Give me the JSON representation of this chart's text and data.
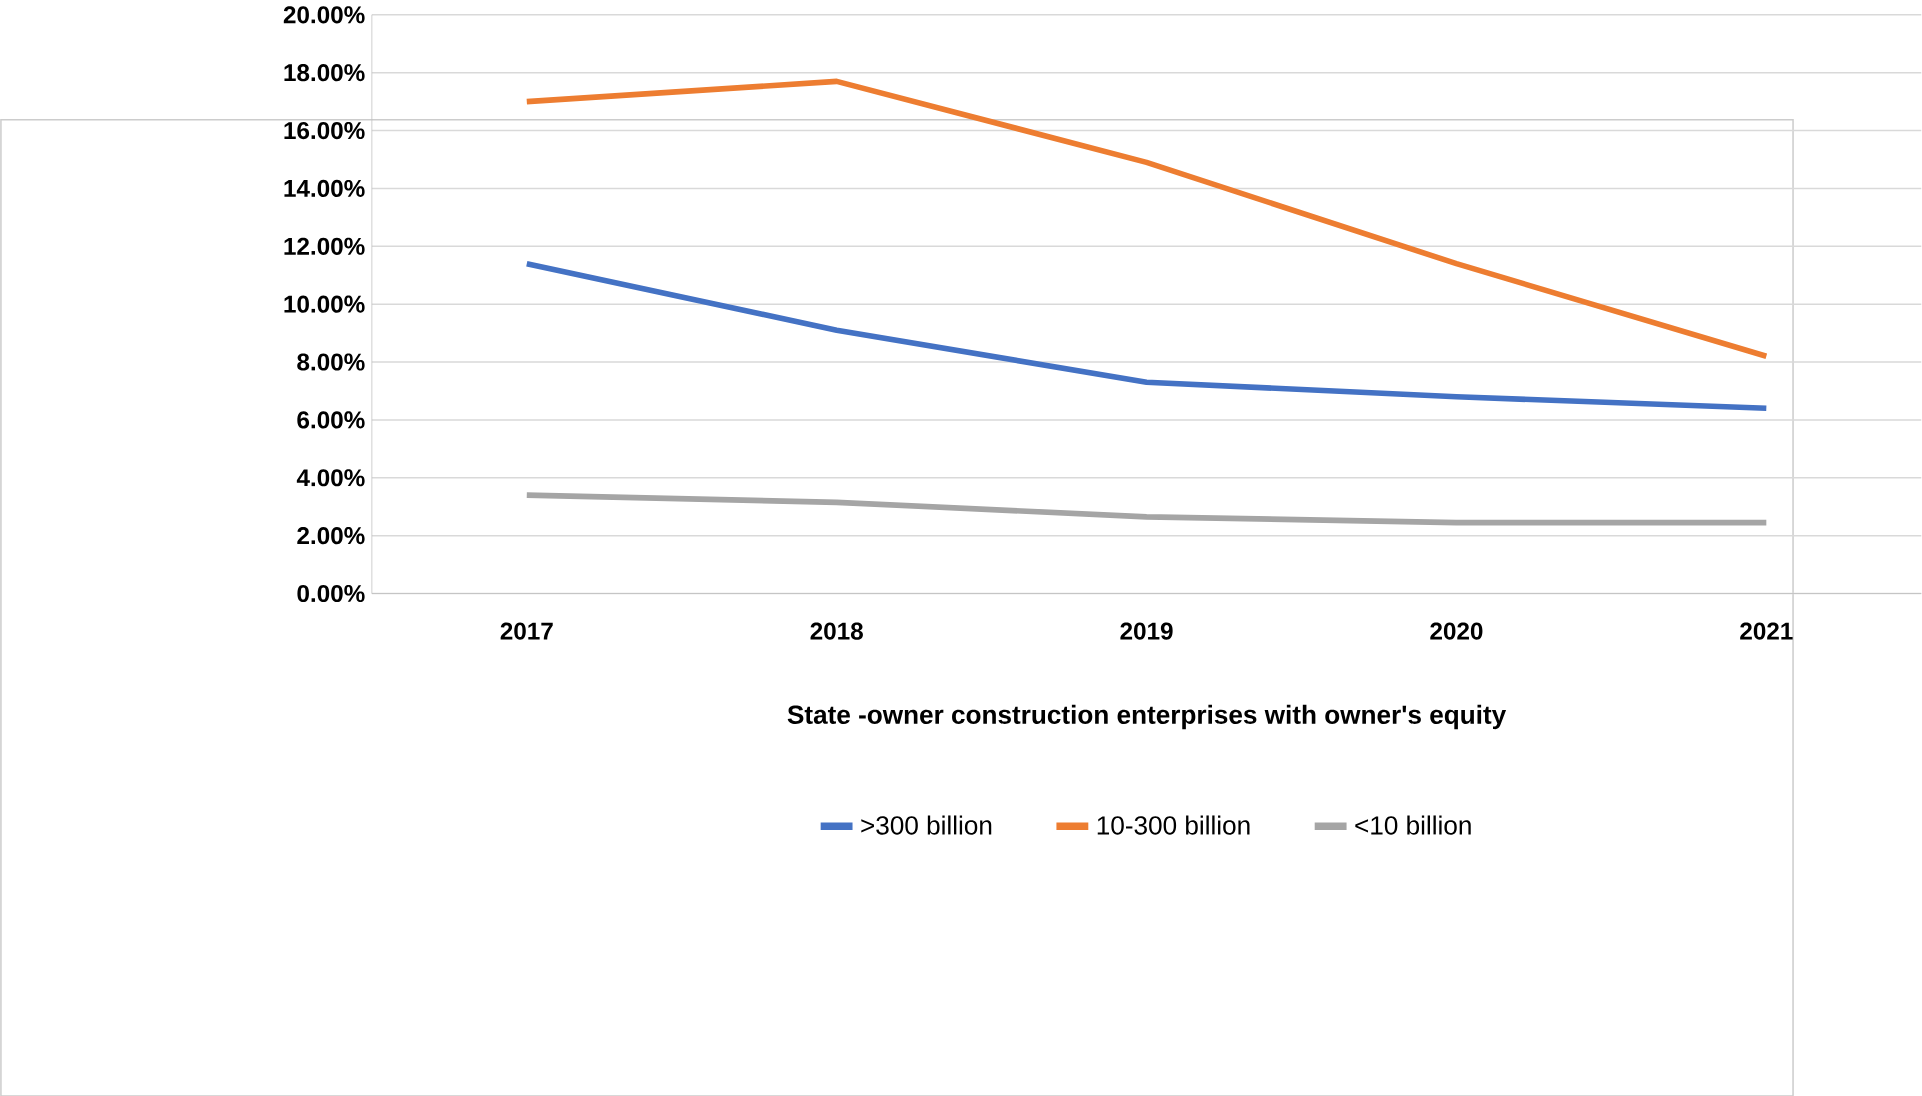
{
  "chart_data": {
    "type": "line",
    "xlabel": "State -owner construction enterprises with owner's equity",
    "categories": [
      "2017",
      "2018",
      "2019",
      "2020",
      "2021"
    ],
    "series": [
      {
        "name": ">300 billion",
        "color": "#4472c4",
        "values": [
          11.4,
          9.1,
          7.3,
          6.8,
          6.4
        ]
      },
      {
        "name": "10-300 billion",
        "color": "#ed7d31",
        "values": [
          17.0,
          17.7,
          14.9,
          11.4,
          8.2
        ]
      },
      {
        "name": "<10 billion",
        "color": "#a5a5a5",
        "values": [
          3.4,
          3.15,
          2.65,
          2.45,
          2.45
        ]
      }
    ],
    "ylim": [
      0,
      20
    ],
    "yticks": [
      {
        "value": 0,
        "label": "0.00%"
      },
      {
        "value": 2,
        "label": "2.00%"
      },
      {
        "value": 4,
        "label": "4.00%"
      },
      {
        "value": 6,
        "label": "6.00%"
      },
      {
        "value": 8,
        "label": "8.00%"
      },
      {
        "value": 10,
        "label": "10.00%"
      },
      {
        "value": 12,
        "label": "12.00%"
      },
      {
        "value": 14,
        "label": "14.00%"
      },
      {
        "value": 16,
        "label": "16.00%"
      },
      {
        "value": 18,
        "label": "18.00%"
      },
      {
        "value": 20,
        "label": "20.00%"
      }
    ],
    "grid": "y",
    "legend": "bottom",
    "marker": "none",
    "line_style": "solid"
  }
}
